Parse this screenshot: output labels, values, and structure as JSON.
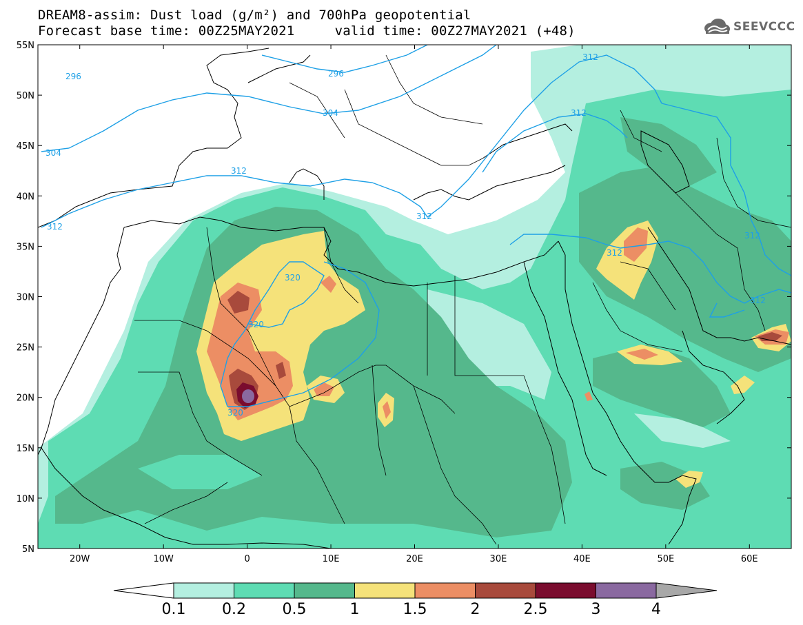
{
  "header": {
    "title_line1": "DREAM8-assim: Dust load (g/m²) and 700hPa geopotential",
    "title_line2": "Forecast base time: 00Z25MAY2021     valid time: 00Z27MAY2021 (+48)"
  },
  "logo": {
    "text": "SEEVCCC",
    "icon": "cloud-logo-icon"
  },
  "map": {
    "lon_range": [
      -25,
      65
    ],
    "lat_range": [
      5,
      55
    ],
    "lat_ticks": [
      "55N",
      "50N",
      "45N",
      "40N",
      "35N",
      "30N",
      "25N",
      "20N",
      "15N",
      "10N",
      "5N"
    ],
    "lon_ticks": [
      "20W",
      "10W",
      "0",
      "10E",
      "20E",
      "30E",
      "40E",
      "50E",
      "60E"
    ],
    "contour_labels": [
      "296",
      "296",
      "304",
      "304",
      "312",
      "312",
      "312",
      "312",
      "312",
      "312",
      "312",
      "320",
      "320",
      "320"
    ]
  },
  "colorbar": {
    "levels": [
      "0.1",
      "0.2",
      "0.5",
      "1",
      "1.5",
      "2",
      "2.5",
      "3",
      "4"
    ],
    "colors": [
      "#b4efe0",
      "#5edcb3",
      "#55b88c",
      "#f5e27a",
      "#ec8e64",
      "#a84a3c",
      "#7a0c2e",
      "#8a69a0"
    ],
    "low_color": "#ffffff",
    "high_color": "#a8a8a8"
  }
}
